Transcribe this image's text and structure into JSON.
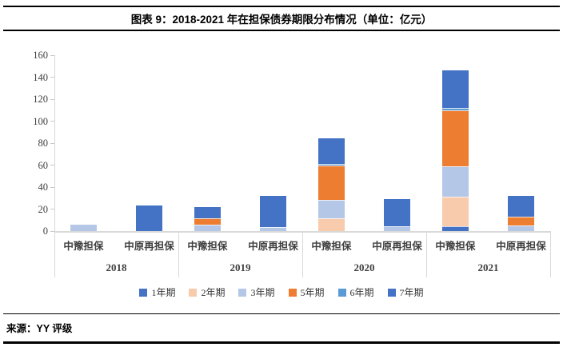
{
  "header": {
    "title": "图表 9：2018-2021 年在担保债券期限分布情况（单位：亿元）"
  },
  "source": {
    "label": "来源：YY 评级"
  },
  "chart_data": {
    "type": "bar",
    "stacked": true,
    "title": "图表 9：2018-2021 年在担保债券期限分布情况（单位：亿元）",
    "unit": "亿元",
    "groups": [
      "2018",
      "2019",
      "2020",
      "2021"
    ],
    "categories": [
      "中豫担保",
      "中原再担保",
      "中豫担保",
      "中原再担保",
      "中豫担保",
      "中原再担保",
      "中豫担保",
      "中原再担保"
    ],
    "series": [
      {
        "name": "1年期",
        "color": "#4472C4",
        "values": [
          0,
          0,
          0,
          0,
          0,
          0,
          4,
          0
        ]
      },
      {
        "name": "2年期",
        "color": "#F8CBAD",
        "values": [
          0,
          0,
          0,
          0,
          11,
          0,
          27,
          0
        ]
      },
      {
        "name": "3年期",
        "color": "#B4C7E7",
        "values": [
          6,
          0,
          6,
          4,
          17,
          4,
          28,
          5
        ]
      },
      {
        "name": "5年期",
        "color": "#ED7D31",
        "values": [
          0,
          0,
          6,
          0,
          31,
          0,
          51,
          8
        ]
      },
      {
        "name": "6年期",
        "color": "#5B9BD5",
        "values": [
          0,
          0,
          0,
          0,
          2,
          0,
          2,
          0
        ]
      },
      {
        "name": "7年期",
        "color": "#4472C4",
        "values": [
          0,
          23,
          10,
          28,
          23,
          25,
          34,
          19
        ]
      }
    ],
    "totals": [
      6,
      23,
      22,
      32,
      84,
      29,
      146,
      32
    ],
    "ylim": [
      0,
      160
    ],
    "ytick_step": 20,
    "grid": false,
    "legend_position": "bottom",
    "axis_color": "#D9D9D9"
  }
}
